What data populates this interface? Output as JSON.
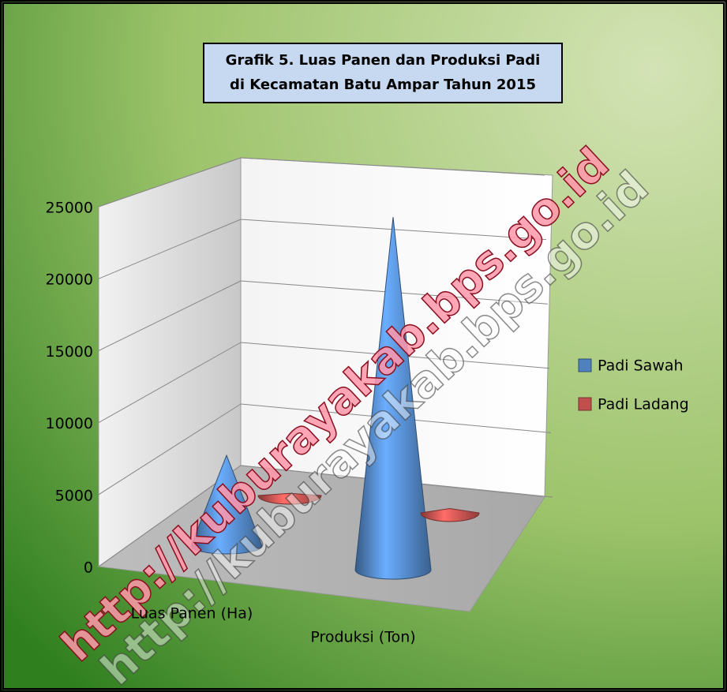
{
  "chart_data": {
    "type": "cone3d",
    "title": [
      "Grafik 5. Luas Panen dan Produksi Padi",
      "di Kecamatan Batu Ampar Tahun 2015"
    ],
    "categories": [
      "Luas Panen (Ha)",
      "Produksi (Ton)"
    ],
    "series": [
      {
        "name": "Padi Sawah",
        "color": "#4f81bd",
        "values": [
          6300,
          24500
        ]
      },
      {
        "name": "Padi Ladang",
        "color": "#c0504d",
        "values": [
          150,
          300
        ]
      }
    ],
    "ylim": [
      0,
      25000
    ],
    "yticks": [
      0,
      5000,
      10000,
      15000,
      20000,
      25000
    ],
    "grid": true,
    "legend": "right",
    "watermarks": [
      "http://kuburayakab.bps.go.id",
      "http://kuburayakab.bps.go.id"
    ]
  }
}
